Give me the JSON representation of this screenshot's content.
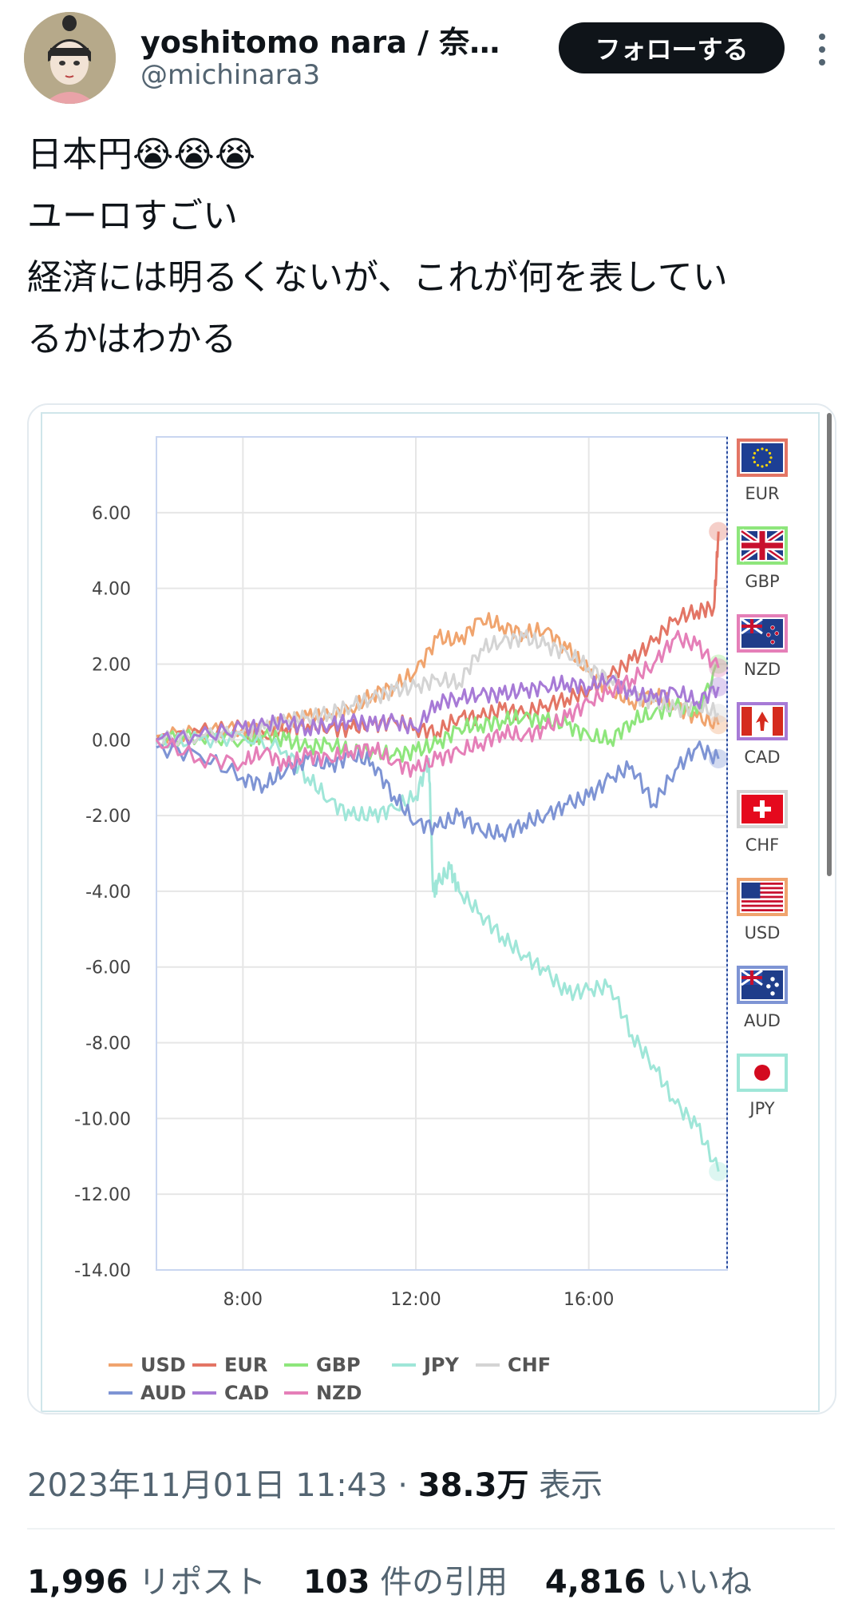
{
  "author": {
    "name": "yoshitomo nara / 奈良…",
    "handle": "@michinara3",
    "follow_label": "フォローする"
  },
  "tweet": {
    "lines": [
      "日本円😭😭😭",
      "ユーロすごい",
      "経済には明るくないが、これが何を表してい",
      "るかはわかる"
    ]
  },
  "chart_data": {
    "type": "line",
    "y_ticks": [
      "6.00",
      "4.00",
      "2.00",
      "0.00",
      "-2.00",
      "-4.00",
      "-6.00",
      "-8.00",
      "-10.00",
      "-12.00",
      "-14.00"
    ],
    "x_ticks": [
      "8:00",
      "12:00",
      "16:00"
    ],
    "ylim": [
      -14,
      8
    ],
    "xlim": [
      6,
      19.2
    ],
    "grid": true,
    "legend_position": "bottom",
    "series": [
      {
        "name": "USD",
        "color": "#f0a46e",
        "x": [
          6,
          7,
          8,
          8.5,
          9,
          9.5,
          10,
          10.5,
          11,
          11.5,
          12,
          12.5,
          13,
          13.5,
          14,
          14.5,
          15,
          15.5,
          16,
          16.5,
          17,
          17.5,
          18,
          18.5,
          19
        ],
        "y": [
          0.1,
          0.2,
          0.3,
          0.2,
          0.5,
          0.6,
          0.6,
          0.8,
          1.2,
          1.4,
          1.8,
          2.7,
          2.6,
          3.2,
          3.0,
          2.8,
          2.9,
          2.4,
          1.8,
          1.3,
          1.0,
          1.2,
          0.9,
          0.6,
          0.4
        ]
      },
      {
        "name": "EUR",
        "color": "#e37565",
        "x": [
          6,
          7,
          8,
          8.5,
          9,
          9.5,
          10,
          10.5,
          11,
          11.5,
          12,
          12.5,
          13,
          13.5,
          14,
          14.5,
          15,
          15.5,
          16,
          16.5,
          17,
          17.5,
          18,
          18.5,
          18.9,
          19
        ],
        "y": [
          0.0,
          0.2,
          0.3,
          0.1,
          0.3,
          0.4,
          0.3,
          0.3,
          0.4,
          0.5,
          0.3,
          0.2,
          0.6,
          0.6,
          0.8,
          0.7,
          0.9,
          1.1,
          1.3,
          1.7,
          2.1,
          2.6,
          3.2,
          3.4,
          3.5,
          5.5
        ]
      },
      {
        "name": "GBP",
        "color": "#8ee67c",
        "x": [
          6,
          7,
          8,
          8.5,
          9,
          9.5,
          10,
          10.5,
          11,
          11.5,
          12,
          12.5,
          13,
          13.5,
          14,
          14.5,
          15,
          15.5,
          16,
          16.5,
          17,
          17.5,
          18,
          18.5,
          19
        ],
        "y": [
          0.0,
          0.1,
          0.0,
          0.1,
          0.0,
          -0.2,
          -0.1,
          -0.3,
          -0.3,
          -0.4,
          -0.3,
          -0.1,
          0.3,
          0.4,
          0.5,
          0.6,
          0.5,
          0.4,
          0.1,
          0.0,
          0.5,
          0.7,
          0.9,
          0.7,
          2.0
        ]
      },
      {
        "name": "JPY",
        "color": "#9fe6d8",
        "x": [
          6,
          7,
          8,
          9,
          9.5,
          10,
          10.5,
          11,
          11.5,
          12,
          12.3,
          12.4,
          12.5,
          12.8,
          13,
          13.5,
          14,
          14.5,
          15,
          15.5,
          16,
          16.5,
          17,
          17.5,
          18,
          18.5,
          19
        ],
        "y": [
          -0.1,
          0.0,
          0.1,
          -0.3,
          -1.0,
          -1.6,
          -2.0,
          -2.0,
          -1.8,
          -1.5,
          -0.5,
          -4.0,
          -3.8,
          -3.4,
          -4.0,
          -4.6,
          -5.2,
          -5.7,
          -6.1,
          -6.7,
          -6.6,
          -6.5,
          -7.8,
          -8.6,
          -9.6,
          -10.2,
          -11.4
        ]
      },
      {
        "name": "CHF",
        "color": "#d4d4d4",
        "x": [
          6,
          7,
          8,
          8.5,
          9,
          9.5,
          10,
          10.5,
          11,
          11.5,
          12,
          12.5,
          13,
          13.5,
          14,
          14.5,
          15,
          15.5,
          16,
          16.5,
          17,
          17.5,
          18,
          18.5,
          19
        ],
        "y": [
          0.0,
          0.1,
          0.2,
          0.3,
          0.5,
          0.6,
          0.7,
          0.9,
          1.1,
          1.3,
          1.4,
          1.6,
          1.5,
          2.4,
          2.6,
          2.7,
          2.5,
          2.3,
          1.9,
          1.6,
          1.2,
          1.0,
          0.8,
          0.9,
          0.7
        ]
      },
      {
        "name": "AUD",
        "color": "#7e94d4",
        "x": [
          6,
          7,
          8,
          8.5,
          9,
          9.5,
          10,
          10.5,
          11,
          11.5,
          12,
          12.5,
          13,
          13.5,
          14,
          14.5,
          15,
          15.5,
          16,
          16.5,
          17,
          17.5,
          18,
          18.5,
          19
        ],
        "y": [
          -0.2,
          -0.4,
          -1.0,
          -1.2,
          -0.8,
          -0.5,
          -0.7,
          -0.4,
          -0.6,
          -1.5,
          -2.2,
          -2.3,
          -2.0,
          -2.4,
          -2.5,
          -2.2,
          -2.0,
          -1.7,
          -1.5,
          -1.0,
          -0.7,
          -1.7,
          -0.8,
          -0.2,
          -0.5
        ]
      },
      {
        "name": "CAD",
        "color": "#a77ad6",
        "x": [
          6,
          7,
          8,
          8.5,
          9,
          9.5,
          10,
          10.5,
          11,
          11.5,
          12,
          12.5,
          13,
          13.5,
          14,
          14.5,
          15,
          15.5,
          16,
          16.5,
          17,
          17.5,
          18,
          18.5,
          19
        ],
        "y": [
          0.0,
          0.1,
          0.3,
          0.4,
          0.5,
          0.3,
          0.4,
          0.5,
          0.4,
          0.5,
          0.3,
          1.0,
          1.1,
          1.2,
          1.2,
          1.3,
          1.4,
          1.5,
          1.4,
          1.6,
          1.2,
          1.1,
          1.3,
          1.0,
          1.4
        ]
      },
      {
        "name": "NZD",
        "color": "#e57fb8",
        "x": [
          6,
          7,
          8,
          8.5,
          9,
          9.5,
          10,
          10.5,
          11,
          11.5,
          12,
          12.5,
          13,
          13.5,
          14,
          14.5,
          15,
          15.5,
          16,
          16.5,
          17,
          17.5,
          18,
          18.5,
          19
        ],
        "y": [
          0.0,
          -0.5,
          -0.6,
          -0.3,
          -0.7,
          -0.4,
          -0.5,
          -0.3,
          -0.2,
          -0.6,
          -0.8,
          -0.5,
          -0.3,
          -0.1,
          0.2,
          0.1,
          0.3,
          0.6,
          1.0,
          1.3,
          1.6,
          2.0,
          2.7,
          2.5,
          1.9
        ]
      }
    ]
  },
  "flags": [
    {
      "code": "EUR",
      "border": "#e37565"
    },
    {
      "code": "GBP",
      "border": "#8ee67c"
    },
    {
      "code": "NZD",
      "border": "#e57fb8"
    },
    {
      "code": "CAD",
      "border": "#a77ad6"
    },
    {
      "code": "CHF",
      "border": "#d4d4d4"
    },
    {
      "code": "USD",
      "border": "#f0a46e"
    },
    {
      "code": "AUD",
      "border": "#7e94d4"
    },
    {
      "code": "JPY",
      "border": "#9fe6d8"
    }
  ],
  "meta": {
    "timestamp": "2023年11月01日 11:43",
    "separator": " · ",
    "views": "38.3万",
    "views_label": "表示"
  },
  "stats": {
    "reposts": "1,996",
    "reposts_label": "リポスト",
    "quotes": "103",
    "quotes_label": "件の引用",
    "likes": "4,816",
    "likes_label": "いいね"
  }
}
